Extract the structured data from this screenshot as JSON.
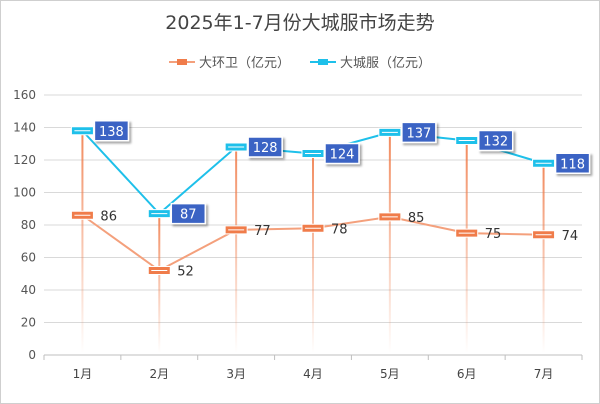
{
  "chart_data": {
    "type": "line",
    "title": "2025年1-7月份大城服市场走势",
    "categories": [
      "1月",
      "2月",
      "3月",
      "4月",
      "5月",
      "6月",
      "7月"
    ],
    "series": [
      {
        "name": "大环卫（亿元）",
        "values": [
          86,
          52,
          77,
          78,
          85,
          75,
          74
        ],
        "color": "#f4a07c",
        "marker_color": "#f07c4a"
      },
      {
        "name": "大城服（亿元）",
        "values": [
          138,
          87,
          128,
          124,
          137,
          132,
          118
        ],
        "color": "#1ec0ea",
        "marker_color": "#1ec0ea"
      }
    ],
    "ylim": [
      0,
      160
    ],
    "yticks": [
      0,
      20,
      40,
      60,
      80,
      100,
      120,
      140,
      160
    ],
    "grid": true,
    "legend_position": "top-center",
    "label_box_color": "#3a63c4"
  }
}
